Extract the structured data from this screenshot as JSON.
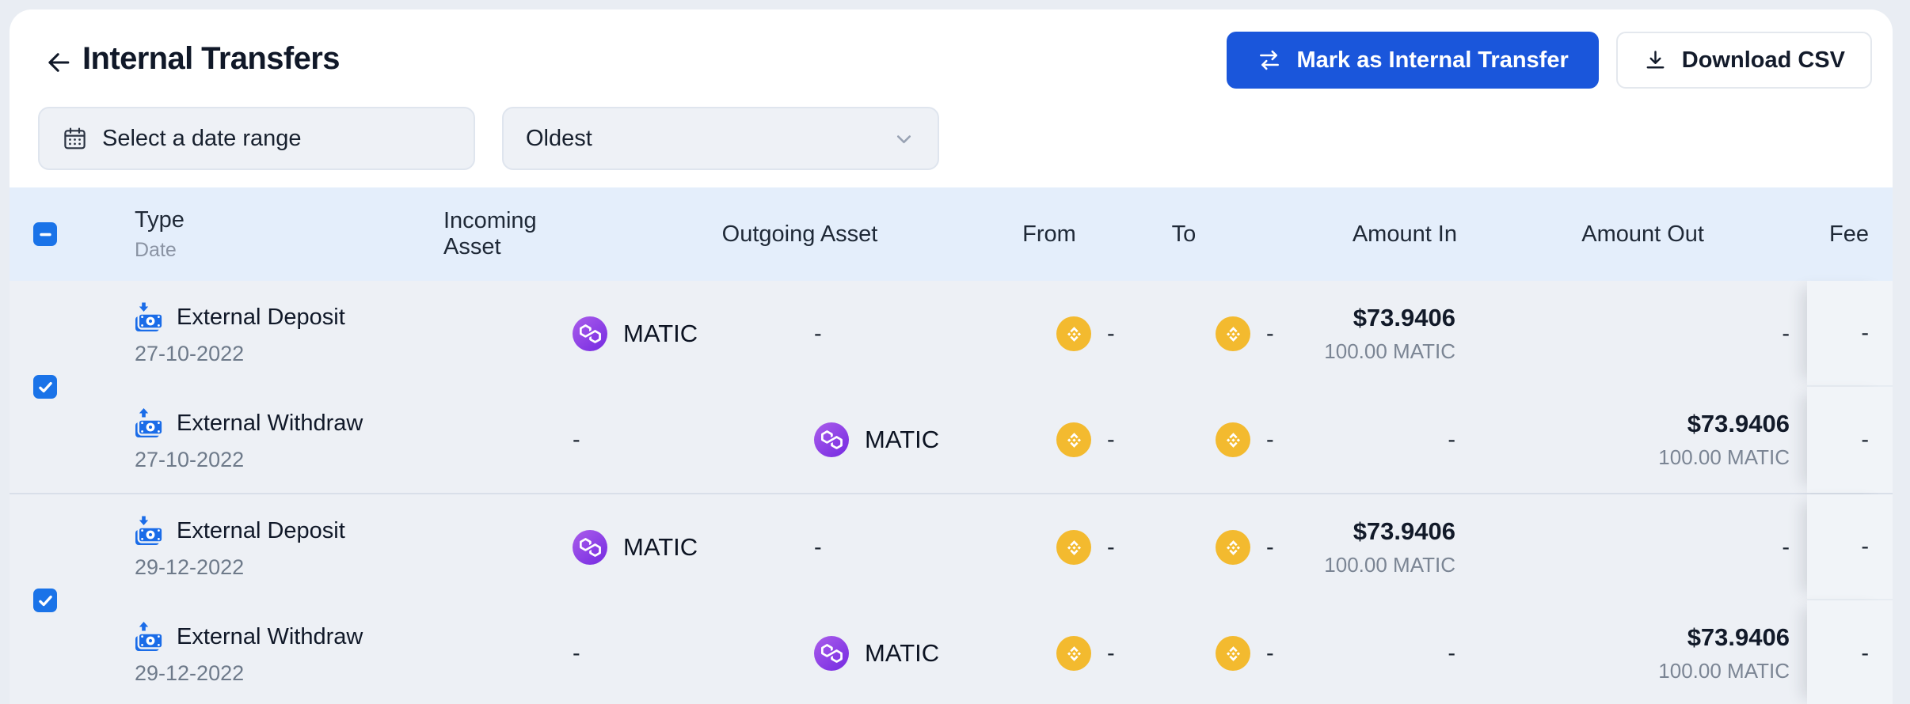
{
  "title": "Internal Transfers",
  "actions": {
    "mark_internal": "Mark as Internal Transfer",
    "download_csv": "Download CSV"
  },
  "filters": {
    "date_range_placeholder": "Select a date range",
    "sort_value": "Oldest"
  },
  "colors": {
    "accent_blue": "#1a56db",
    "checkbox_blue": "#1a73e8",
    "type_icon_blue": "#1a6ce8",
    "bnb_yellow": "#F3BA2F",
    "polygon_purple": "#8247E5",
    "table_header_bg": "#e4eefb",
    "row_bg": "#edf0f5"
  },
  "table": {
    "select_all_state": "indeterminate",
    "headers": {
      "type": "Type",
      "date": "Date",
      "incoming": "Incoming Asset",
      "outgoing": "Outgoing Asset",
      "from": "From",
      "to": "To",
      "amount_in": "Amount In",
      "amount_out": "Amount Out",
      "fee": "Fee"
    },
    "groups": [
      {
        "selected": true,
        "rows": [
          {
            "type_label": "External Deposit",
            "direction": "deposit",
            "date": "27-10-2022",
            "incoming": {
              "asset": "MATIC",
              "icon": "polygon-icon"
            },
            "outgoing": {
              "dash": "-"
            },
            "from": {
              "icon": "bnb-icon",
              "dash": "-"
            },
            "to": {
              "icon": "bnb-icon",
              "dash": "-"
            },
            "amount_in": {
              "fiat": "$73.9406",
              "qty": "100.00 MATIC"
            },
            "amount_out": {
              "dash": "-"
            },
            "fee": {
              "dash": "-"
            }
          },
          {
            "type_label": "External Withdraw",
            "direction": "withdraw",
            "date": "27-10-2022",
            "incoming": {
              "dash": "-"
            },
            "outgoing": {
              "asset": "MATIC",
              "icon": "polygon-icon"
            },
            "from": {
              "icon": "bnb-icon",
              "dash": "-"
            },
            "to": {
              "icon": "bnb-icon",
              "dash": "-"
            },
            "amount_in": {
              "dash": "-"
            },
            "amount_out": {
              "fiat": "$73.9406",
              "qty": "100.00 MATIC"
            },
            "fee": {
              "dash": "-"
            }
          }
        ]
      },
      {
        "selected": true,
        "rows": [
          {
            "type_label": "External Deposit",
            "direction": "deposit",
            "date": "29-12-2022",
            "incoming": {
              "asset": "MATIC",
              "icon": "polygon-icon"
            },
            "outgoing": {
              "dash": "-"
            },
            "from": {
              "icon": "bnb-icon",
              "dash": "-"
            },
            "to": {
              "icon": "bnb-icon",
              "dash": "-"
            },
            "amount_in": {
              "fiat": "$73.9406",
              "qty": "100.00 MATIC"
            },
            "amount_out": {
              "dash": "-"
            },
            "fee": {
              "dash": "-"
            }
          },
          {
            "type_label": "External Withdraw",
            "direction": "withdraw",
            "date": "29-12-2022",
            "incoming": {
              "dash": "-"
            },
            "outgoing": {
              "asset": "MATIC",
              "icon": "polygon-icon"
            },
            "from": {
              "icon": "bnb-icon",
              "dash": "-"
            },
            "to": {
              "icon": "bnb-icon",
              "dash": "-"
            },
            "amount_in": {
              "dash": "-"
            },
            "amount_out": {
              "fiat": "$73.9406",
              "qty": "100.00 MATIC"
            },
            "fee": {
              "dash": "-"
            }
          }
        ]
      }
    ]
  }
}
